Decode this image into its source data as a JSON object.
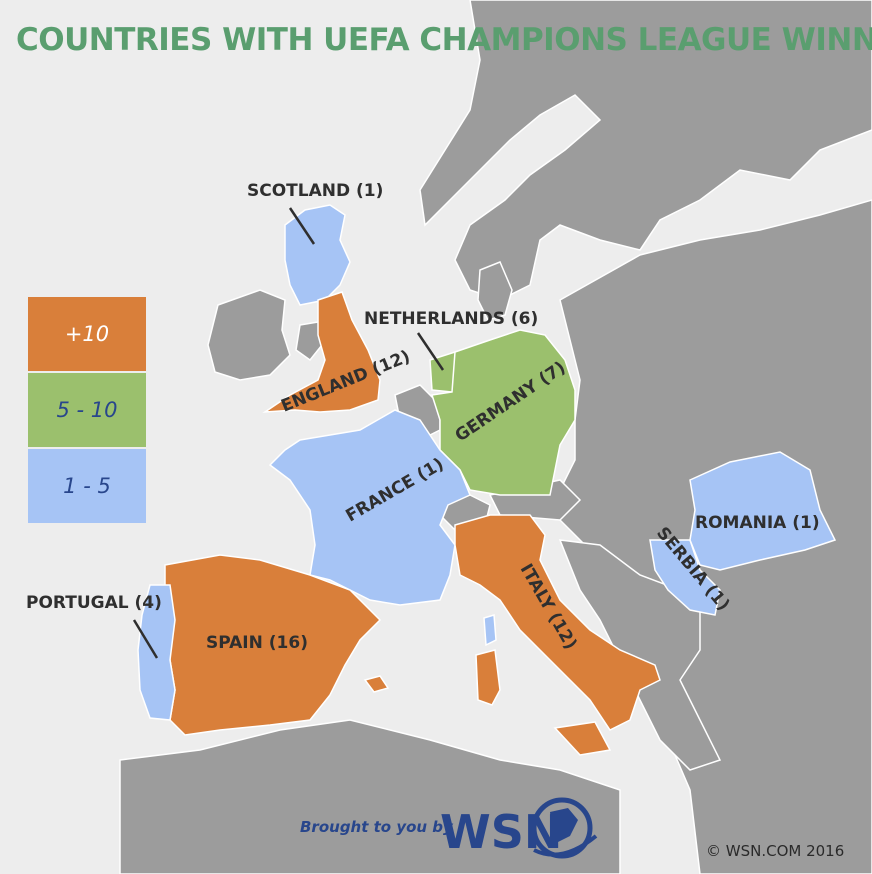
{
  "title": "COUNTRIES WITH UEFA CHAMPIONS LEAGUE WINNING TEAMS",
  "colors": {
    "title": "#5a9e6f",
    "background": "#ededed",
    "land": "#9c9c9c",
    "border": "#ffffff",
    "tier_high": "#d97f3a",
    "tier_mid": "#9bc06d",
    "tier_low": "#a6c4f5",
    "text": "#2f2f2f",
    "brand_blue": "#28468c"
  },
  "legend": [
    {
      "label": "+10",
      "tier": "high",
      "color": "#d97f3a"
    },
    {
      "label": "5 - 10",
      "tier": "mid",
      "color": "#9bc06d"
    },
    {
      "label": "1 - 5",
      "tier": "low",
      "color": "#a6c4f5"
    }
  ],
  "countries": {
    "scotland": {
      "label": "SCOTLAND (1)",
      "titles": 1,
      "tier": "low"
    },
    "england": {
      "label": "ENGLAND (12)",
      "titles": 12,
      "tier": "high"
    },
    "netherlands": {
      "label": "NETHERLANDS (6)",
      "titles": 6,
      "tier": "mid"
    },
    "germany": {
      "label": "GERMANY (7)",
      "titles": 7,
      "tier": "mid"
    },
    "france": {
      "label": "FRANCE (1)",
      "titles": 1,
      "tier": "low"
    },
    "romania": {
      "label": "ROMANIA (1)",
      "titles": 1,
      "tier": "low"
    },
    "serbia": {
      "label": "SERBIA (1)",
      "titles": 1,
      "tier": "low"
    },
    "italy": {
      "label": "ITALY (12)",
      "titles": 12,
      "tier": "high"
    },
    "portugal": {
      "label": "PORTUGAL (4)",
      "titles": 4,
      "tier": "low"
    },
    "spain": {
      "label": "SPAIN (16)",
      "titles": 16,
      "tier": "high"
    }
  },
  "footer": {
    "brought_by": "Brought to you by",
    "logo_text": "WSN",
    "copyright": "© WSN.COM 2016"
  }
}
